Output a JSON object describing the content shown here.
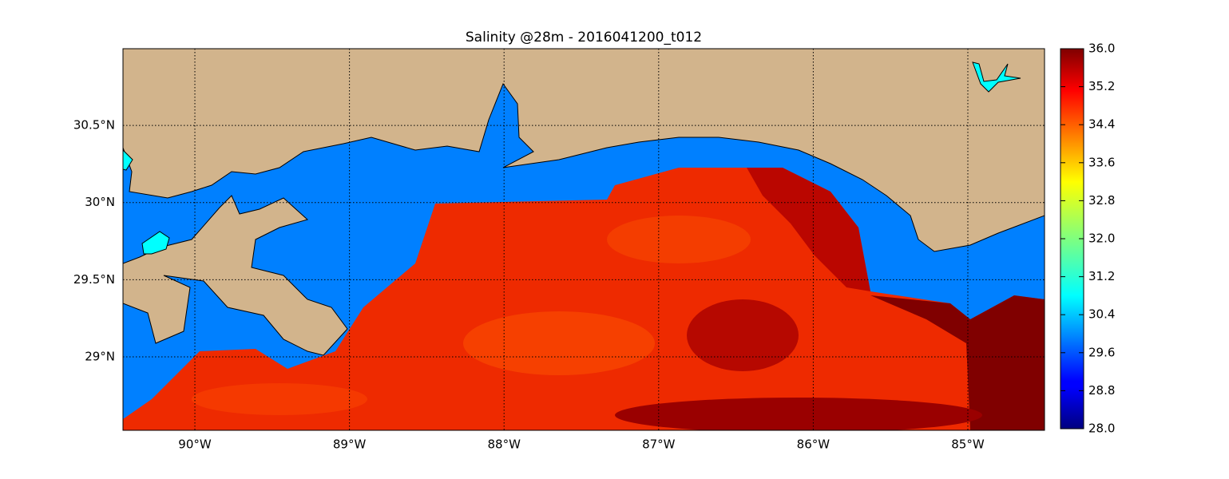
{
  "chart_data": {
    "type": "map",
    "title": "Salinity @28m - 2016041200_t012",
    "xlim": [
      -90.465,
      -84.504
    ],
    "ylim": [
      28.524,
      30.997
    ],
    "xticks": [
      {
        "value": -90,
        "label": "90°W"
      },
      {
        "value": -89,
        "label": "89°W"
      },
      {
        "value": -88,
        "label": "88°W"
      },
      {
        "value": -87,
        "label": "87°W"
      },
      {
        "value": -86,
        "label": "86°W"
      },
      {
        "value": -85,
        "label": "85°W"
      }
    ],
    "yticks": [
      {
        "value": 29,
        "label": "29°N"
      },
      {
        "value": 29.5,
        "label": "29.5°N"
      },
      {
        "value": 30,
        "label": "30°N"
      },
      {
        "value": 30.5,
        "label": "30.5°N"
      }
    ],
    "grid": true,
    "colorbar": {
      "lim": [
        28,
        36
      ],
      "ticks": [
        {
          "value": 28,
          "label": "28.0"
        },
        28.8,
        29.6,
        30.4,
        31.2,
        {
          "value": 32,
          "label": "32.0"
        },
        32.8,
        33.6,
        34.4,
        35.2,
        {
          "value": 36,
          "label": "36.0"
        }
      ]
    }
  }
}
